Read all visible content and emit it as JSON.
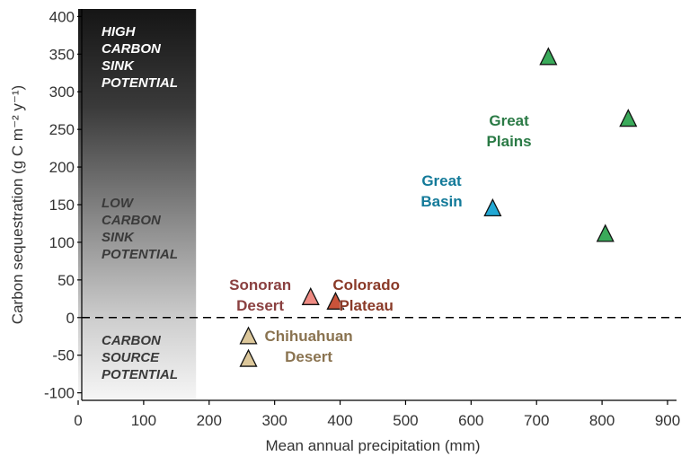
{
  "chart_data": {
    "type": "scatter",
    "title": "",
    "xlabel": "Mean annual precipitation (mm)",
    "ylabel": "Carbon sequestration (g C m⁻² y⁻¹)",
    "xlim": [
      0,
      900
    ],
    "ylim": [
      -110,
      410
    ],
    "xticks": [
      0,
      100,
      200,
      300,
      400,
      500,
      600,
      700,
      800,
      900
    ],
    "yticks": [
      -100,
      -50,
      0,
      50,
      100,
      150,
      200,
      250,
      300,
      350,
      400
    ],
    "zero_reference_line": {
      "y": 0,
      "style": "dashed"
    },
    "shaded_band": {
      "x_range": [
        0,
        180
      ],
      "gradient": "black at top to white at bottom"
    },
    "zone_labels": [
      {
        "lines": [
          "HIGH",
          "CARBON",
          "SINK",
          "POTENTIAL"
        ],
        "color": "#ffffff"
      },
      {
        "lines": [
          "LOW",
          "CARBON",
          "SINK",
          "POTENTIAL"
        ],
        "color": "#3a3a3a"
      },
      {
        "lines": [
          "CARBON",
          "SOURCE",
          "POTENTIAL"
        ],
        "color": "#3a3a3a"
      }
    ],
    "series": [
      {
        "name": "Great Plains",
        "label_lines": [
          "Great",
          "Plains"
        ],
        "color": "#3aaa5a",
        "label_color": "#2a7a45",
        "points": [
          {
            "x": 718,
            "y": 347
          },
          {
            "x": 840,
            "y": 265
          },
          {
            "x": 805,
            "y": 112
          }
        ]
      },
      {
        "name": "Great Basin",
        "label_lines": [
          "Great",
          "Basin"
        ],
        "color": "#22a8d4",
        "label_color": "#137a99",
        "points": [
          {
            "x": 633,
            "y": 146
          }
        ]
      },
      {
        "name": "Sonoran Desert",
        "label_lines": [
          "Sonoran",
          "Desert"
        ],
        "color": "#ee8a82",
        "label_color": "#8a4040",
        "points": [
          {
            "x": 355,
            "y": 28
          }
        ]
      },
      {
        "name": "Colorado Plateau",
        "label_lines": [
          "Colorado",
          "Plateau"
        ],
        "color": "#c9533a",
        "label_color": "#8a3a28",
        "points": [
          {
            "x": 393,
            "y": 22
          }
        ]
      },
      {
        "name": "Chihuahuan Desert",
        "label_lines": [
          "Chihuahuan",
          "Desert"
        ],
        "color": "#dcc79a",
        "label_color": "#8a7350",
        "points": [
          {
            "x": 260,
            "y": -24
          },
          {
            "x": 260,
            "y": -54
          }
        ]
      }
    ]
  }
}
